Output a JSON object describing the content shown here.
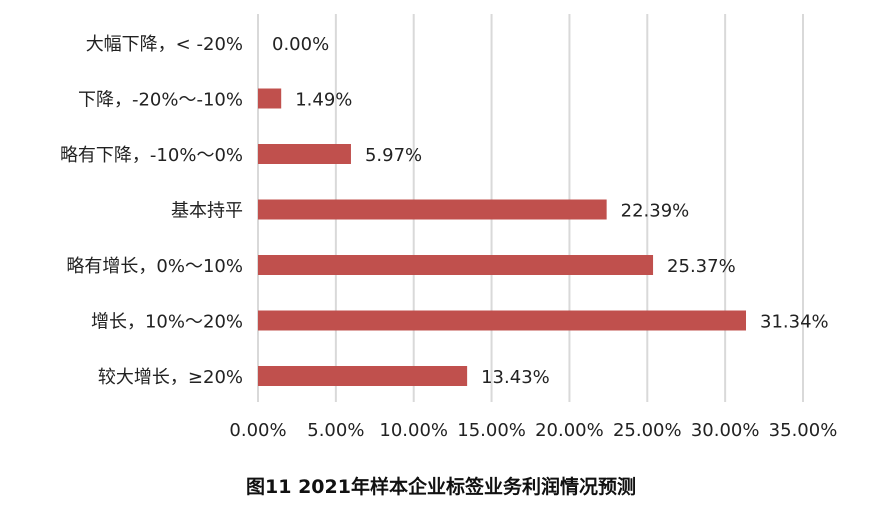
{
  "chart_data": {
    "type": "bar",
    "orientation": "horizontal",
    "categories": [
      "大幅下降，< -20%",
      "下降，-20%～-10%",
      "略有下降，-10%～0%",
      "基本持平",
      "略有增长，0%～10%",
      "增长，10%～20%",
      "较大增长，≥20%"
    ],
    "values": [
      0.0,
      1.49,
      5.97,
      22.39,
      25.37,
      31.34,
      13.43
    ],
    "value_labels": [
      "0.00%",
      "1.49%",
      "5.97%",
      "22.39%",
      "25.37%",
      "31.34%",
      "13.43%"
    ],
    "xlim": [
      0,
      35
    ],
    "xticks": [
      0,
      5,
      10,
      15,
      20,
      25,
      30,
      35
    ],
    "xtick_labels": [
      "0.00%",
      "5.00%",
      "10.00%",
      "15.00%",
      "20.00%",
      "25.00%",
      "30.00%",
      "35.00%"
    ],
    "grid": true,
    "bar_color": "#c0504d",
    "grid_color": "#d9d9d9",
    "caption": "图11 2021年样本企业标签业务利润情况预测"
  }
}
